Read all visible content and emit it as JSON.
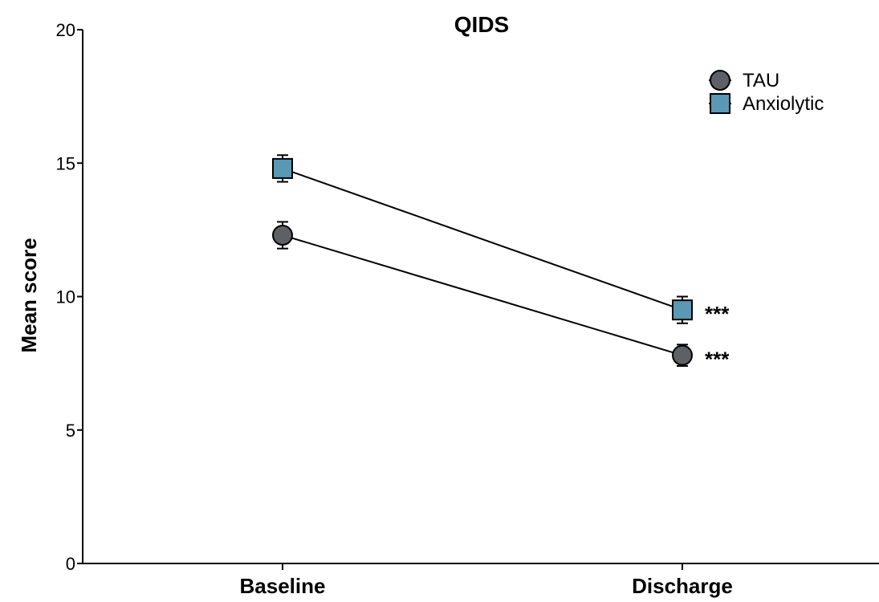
{
  "chart_data": {
    "type": "line",
    "title": "QIDS",
    "xlabel": "",
    "ylabel": "Mean score",
    "categories": [
      "Baseline",
      "Discharge"
    ],
    "ylim": [
      0,
      20
    ],
    "yticks": [
      "0",
      "5",
      "10",
      "15",
      "20"
    ],
    "grid": false,
    "legend_position": "top-right",
    "series": [
      {
        "name": "TAU",
        "marker": "circle",
        "color": "#5f5f66",
        "values": [
          12.3,
          7.8
        ],
        "error": [
          0.5,
          0.4
        ],
        "annotations": [
          "",
          "***"
        ]
      },
      {
        "name": "Anxiolytic",
        "marker": "square",
        "color": "#5b98b3",
        "values": [
          14.8,
          9.5
        ],
        "error": [
          0.5,
          0.5
        ],
        "annotations": [
          "",
          "***"
        ]
      }
    ]
  }
}
